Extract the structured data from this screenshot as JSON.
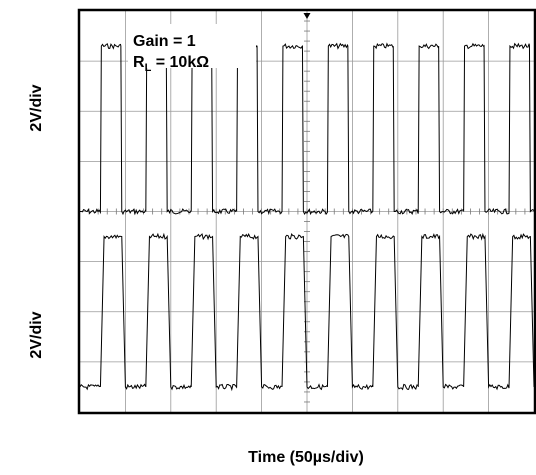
{
  "chart_data": {
    "type": "line",
    "title": "",
    "annotations": {
      "gain": "Gain = 1",
      "load_prefix": "R",
      "load_subscript": "L",
      "load_value": " = 10kΩ"
    },
    "xlabel": "Time (50µs/div)",
    "ylabel_top": "2V/div",
    "ylabel_bottom": "2V/div",
    "grid": true,
    "divisions": {
      "x": 10,
      "y": 8
    },
    "xlim": [
      0,
      10
    ],
    "ylim": [
      0,
      8
    ],
    "series": [
      {
        "x": [
          0,
          0.45,
          0.47,
          0.9,
          0.92,
          1.45,
          1.47,
          1.9,
          1.92,
          2.45,
          2.47,
          2.9,
          2.92,
          3.45,
          3.47,
          3.9,
          3.92,
          4.45,
          4.47,
          4.9,
          4.92,
          5.45,
          5.47,
          5.9,
          5.92,
          6.45,
          6.47,
          6.9,
          6.92,
          7.45,
          7.47,
          7.9,
          7.92,
          8.45,
          8.47,
          8.9,
          8.92,
          9.45,
          9.47,
          9.9,
          9.92,
          10
        ],
        "y": [
          4.0,
          4.0,
          7.3,
          7.3,
          4.0,
          4.0,
          7.3,
          7.3,
          4.0,
          4.0,
          7.3,
          7.3,
          4.0,
          4.0,
          7.3,
          7.3,
          4.0,
          4.0,
          7.3,
          7.3,
          4.0,
          4.0,
          7.3,
          7.3,
          4.0,
          4.0,
          7.3,
          7.3,
          4.0,
          4.0,
          7.3,
          7.3,
          4.0,
          4.0,
          7.3,
          7.3,
          4.0,
          4.0,
          7.3,
          7.3,
          4.0,
          4.0
        ]
      },
      {
        "x": [
          0,
          0.45,
          0.53,
          0.92,
          1.0,
          1.45,
          1.53,
          1.92,
          2.0,
          2.45,
          2.53,
          2.92,
          3.0,
          3.45,
          3.53,
          3.92,
          4.0,
          4.45,
          4.53,
          4.92,
          5.0,
          5.45,
          5.53,
          5.92,
          6.0,
          6.45,
          6.53,
          6.92,
          7.0,
          7.45,
          7.53,
          7.92,
          8.0,
          8.45,
          8.53,
          8.92,
          9.0,
          9.45,
          9.53,
          9.92,
          10
        ],
        "y": [
          0.5,
          0.5,
          3.5,
          3.5,
          0.5,
          0.5,
          3.5,
          3.5,
          0.5,
          0.5,
          3.5,
          3.5,
          0.5,
          0.5,
          3.5,
          3.5,
          0.5,
          0.5,
          3.5,
          3.5,
          0.5,
          0.5,
          3.5,
          3.5,
          0.5,
          0.5,
          3.5,
          3.5,
          0.5,
          0.5,
          3.5,
          3.5,
          0.5,
          0.5,
          3.5,
          3.5,
          0.5,
          0.5,
          3.5,
          3.5,
          0.5
        ]
      }
    ],
    "colors": {
      "trace": "#000000",
      "grid": "#999999",
      "frame": "#000000"
    }
  }
}
